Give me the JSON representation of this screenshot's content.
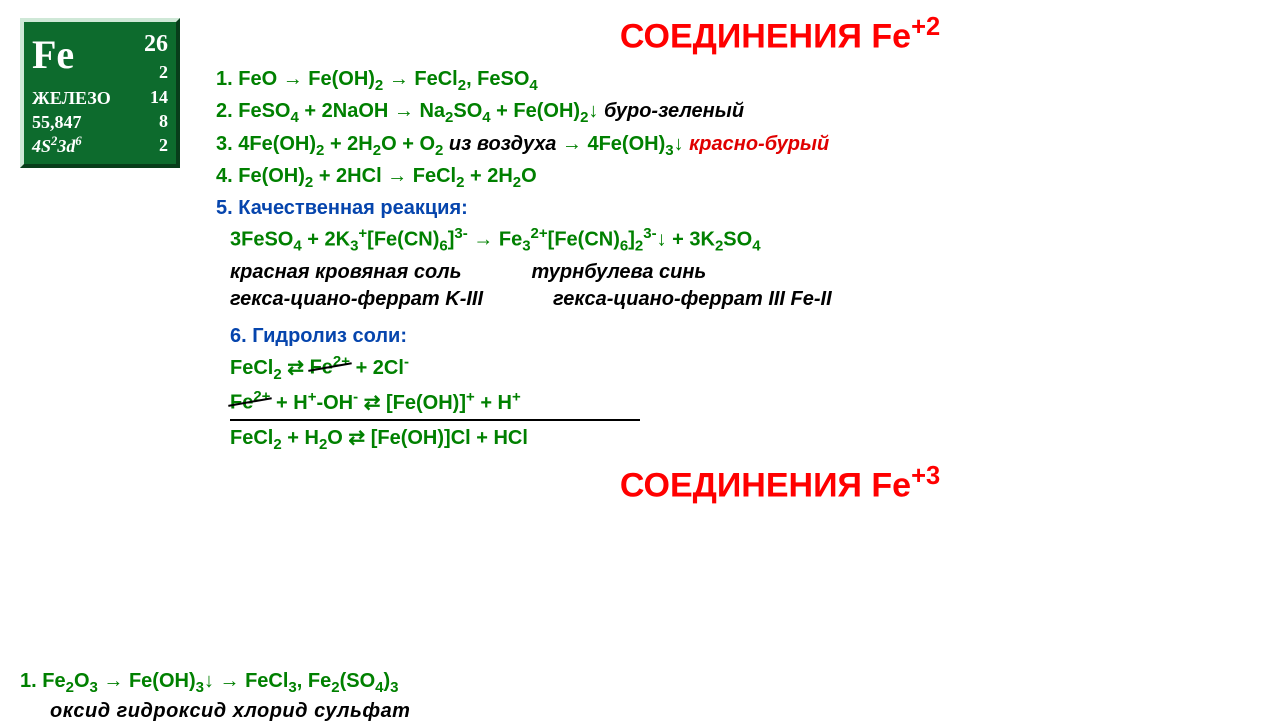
{
  "element": {
    "symbol": "Fe",
    "atomic_number": "26",
    "shell_a": "2",
    "name_ru": "ЖЕЛЕЗО",
    "shell_b": "14",
    "mass": "55,847",
    "shell_c": "8",
    "config_html": "4S<sup>2</sup>3d<sup>6</sup>",
    "shell_d": "2",
    "box_bg": "#0d6b2d",
    "box_text": "#ffffff"
  },
  "titles": {
    "t1_html": "СОЕДИНЕНИЯ Fe<sup>+2</sup>",
    "t2_html": "СОЕДИНЕНИЯ Fe<sup>+3</sup>",
    "color": "#ff0000",
    "fontsize": 34
  },
  "colors": {
    "formula": "#008000",
    "note_blue": "#0645ad",
    "note_red": "#e00000",
    "black": "#000000",
    "background": "#ffffff"
  },
  "fontsize": {
    "body": 20
  },
  "eq1": {
    "num": "1. ",
    "f": "FeO → Fe(OH)<sub>2</sub> → FeCl<sub>2</sub>, FeSO<sub>4</sub>"
  },
  "eq2": {
    "num": "2. ",
    "f": "FeSO<sub>4</sub> + 2NaOH → Na<sub>2</sub>SO<sub>4</sub> + Fe(OH)<sub>2</sub>↓",
    "note": " буро-зеленый"
  },
  "eq3": {
    "num": "3. ",
    "f_a": "4Fe(OH)<sub>2</sub> + 2H<sub>2</sub>O + O<sub>2</sub>",
    "mid": " из воздуха ",
    "f_b": "→ 4Fe(OH)<sub>3</sub>↓ ",
    "note": " красно-бурый"
  },
  "eq4": {
    "num": "4. ",
    "f": "Fe(OH)<sub>2</sub> + 2HCl → FeCl<sub>2</sub> + 2H<sub>2</sub>O"
  },
  "eq5": {
    "num": "5. ",
    "head": "Качественная реакция:",
    "f": "3FeSO<sub>4</sub> + 2K<sub>3</sub><sup>+</sup>[Fe(CN)<sub>6</sub>]<sup>3-</sup> → Fe<sub>3</sub><sup>2+</sup>[Fe(CN)<sub>6</sub>]<sub>2</sub><sup>3-</sup>↓ + 3K<sub>2</sub>SO<sub>4</sub>",
    "left1": "красная кровяная соль",
    "right1": "турнбулева синь",
    "left2": "гекса-циано-феррат K-III",
    "right2": "гекса-циано-феррат III Fe-II"
  },
  "eq6": {
    "num": "6. ",
    "head": "Гидролиз соли:",
    "l1_a": "FeCl<sub>2</sub> ⇄ ",
    "l1_strike": "Fe<sup>2+</sup>",
    "l1_b": " + 2Cl<sup>-</sup>",
    "l2_strike": "Fe<sup>2+</sup>",
    "l2": " + H<sup>+</sup>-OH<sup>-</sup> ⇄ [Fe(OH)]<sup>+</sup> + H<sup>+</sup>",
    "l3": "FeCl<sub>2</sub> + H<sub>2</sub>O ⇄ [Fe(OH)]Cl + HCl"
  },
  "sec2": {
    "num": "1. ",
    "f": "Fe<sub>2</sub>O<sub>3</sub> → Fe(OH)<sub>3</sub>↓ → FeCl<sub>3</sub>, Fe<sub>2</sub>(SO<sub>4</sub>)<sub>3</sub>",
    "sub": "оксид  гидроксид   хлорид   сульфат"
  }
}
